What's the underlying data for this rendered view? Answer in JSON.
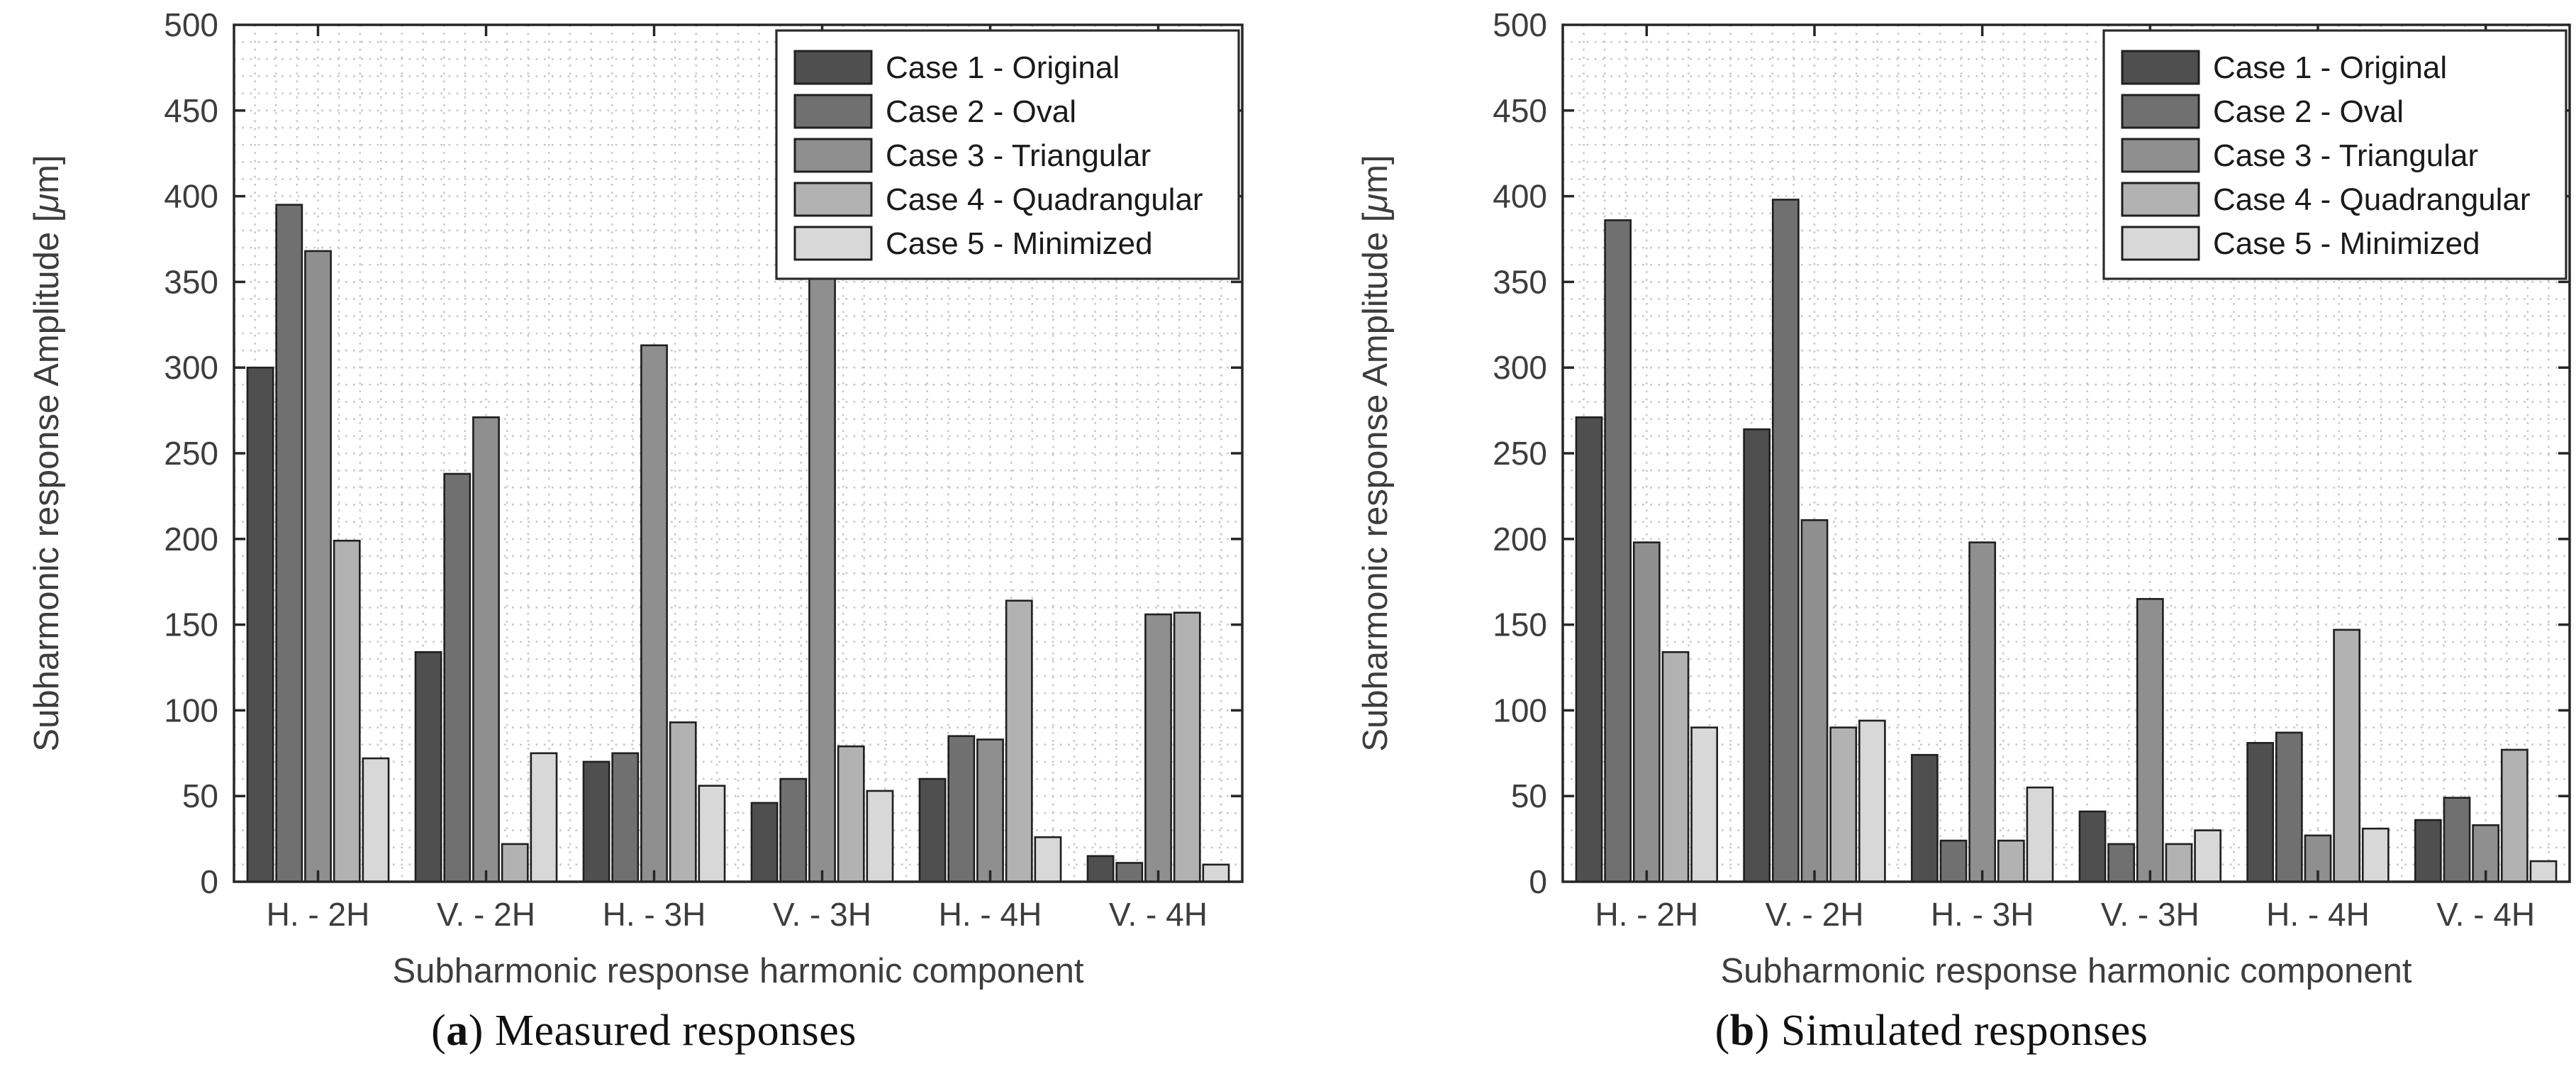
{
  "chart_data": [
    {
      "type": "bar",
      "caption": {
        "letter": "a",
        "text": "Measured responses"
      },
      "xlabel": "Subharmonic response harmonic component",
      "ylabel": "Subharmonic response Amplitude [μm]",
      "ylim": [
        0,
        500
      ],
      "ytick_step": 50,
      "grid": "dotted minor grid, both axes",
      "legend_position": "northeast inside",
      "categories": [
        "H. - 2H",
        "V. - 2H",
        "H. - 3H",
        "V. - 3H",
        "H. - 4H",
        "V. - 4H"
      ],
      "series": [
        {
          "name": "Case 1 - Original",
          "color": "#4f4f4f",
          "values": [
            300,
            134,
            70,
            46,
            60,
            15
          ]
        },
        {
          "name": "Case 2 - Oval",
          "color": "#707070",
          "values": [
            395,
            238,
            75,
            60,
            85,
            11
          ]
        },
        {
          "name": "Case 3 - Triangular",
          "color": "#8f8f8f",
          "values": [
            368,
            271,
            313,
            429,
            83,
            156
          ]
        },
        {
          "name": "Case 4 - Quadrangular",
          "color": "#b2b2b2",
          "values": [
            199,
            22,
            93,
            79,
            164,
            157
          ]
        },
        {
          "name": "Case 5 - Minimized",
          "color": "#d8d8d8",
          "values": [
            72,
            75,
            56,
            53,
            26,
            10
          ]
        }
      ]
    },
    {
      "type": "bar",
      "caption": {
        "letter": "b",
        "text": "Simulated responses"
      },
      "xlabel": "Subharmonic response harmonic component",
      "ylabel": "Subharmonic response Amplitude [μm]",
      "ylim": [
        0,
        500
      ],
      "ytick_step": 50,
      "grid": "dotted minor grid, both axes",
      "legend_position": "northeast inside",
      "categories": [
        "H. - 2H",
        "V. - 2H",
        "H. - 3H",
        "V. - 3H",
        "H. - 4H",
        "V. - 4H"
      ],
      "series": [
        {
          "name": "Case 1 - Original",
          "color": "#4f4f4f",
          "values": [
            271,
            264,
            74,
            41,
            81,
            36
          ]
        },
        {
          "name": "Case 2 - Oval",
          "color": "#707070",
          "values": [
            386,
            398,
            24,
            22,
            87,
            49
          ]
        },
        {
          "name": "Case 3 - Triangular",
          "color": "#8f8f8f",
          "values": [
            198,
            211,
            198,
            165,
            27,
            33
          ]
        },
        {
          "name": "Case 4 - Quadrangular",
          "color": "#b2b2b2",
          "values": [
            134,
            90,
            24,
            22,
            147,
            77
          ]
        },
        {
          "name": "Case 5 - Minimized",
          "color": "#d8d8d8",
          "values": [
            90,
            94,
            55,
            30,
            31,
            12
          ]
        }
      ]
    }
  ],
  "style": {
    "frame_color": "#262626",
    "tick_label_color": "#3d3d3d",
    "grid_color": "#c9c9c9",
    "bar_edge_color": "#1f1f1f",
    "legend_border_color": "#2b2b2b",
    "legend_bg": "#ffffff",
    "legend_text_color": "#1a1a1a"
  }
}
